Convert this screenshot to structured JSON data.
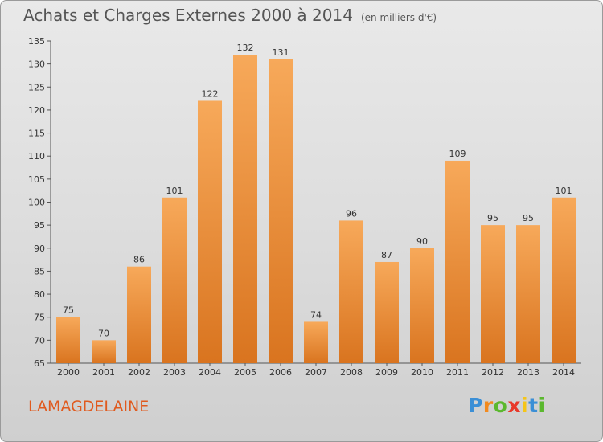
{
  "title": "Achats et Charges Externes 2000 à 2014",
  "subtitle": "(en milliers d'€)",
  "commune": "LAMAGDELAINE",
  "brand": {
    "letters": [
      "P",
      "r",
      "o",
      "x",
      "i",
      "t",
      "i"
    ],
    "colors": [
      "#3b8fd6",
      "#f28a1e",
      "#5bb82e",
      "#e8392a",
      "#f5c518",
      "#3b8fd6",
      "#5bb82e"
    ]
  },
  "colors": {
    "bar_top": "#f7a95a",
    "bar_bottom": "#d9741f",
    "axis": "#555555",
    "grid": "#c8c8c8",
    "label": "#333333"
  },
  "chart_data": {
    "type": "bar",
    "categories": [
      "2000",
      "2001",
      "2002",
      "2003",
      "2004",
      "2005",
      "2006",
      "2007",
      "2008",
      "2009",
      "2010",
      "2011",
      "2012",
      "2013",
      "2014"
    ],
    "values": [
      75,
      70,
      86,
      101,
      122,
      132,
      131,
      74,
      96,
      87,
      90,
      109,
      95,
      95,
      101
    ],
    "ylim": [
      65,
      135
    ],
    "yticks": [
      65,
      70,
      75,
      80,
      85,
      90,
      95,
      100,
      105,
      110,
      115,
      120,
      125,
      130,
      135
    ],
    "grid": false,
    "legend": "none"
  }
}
